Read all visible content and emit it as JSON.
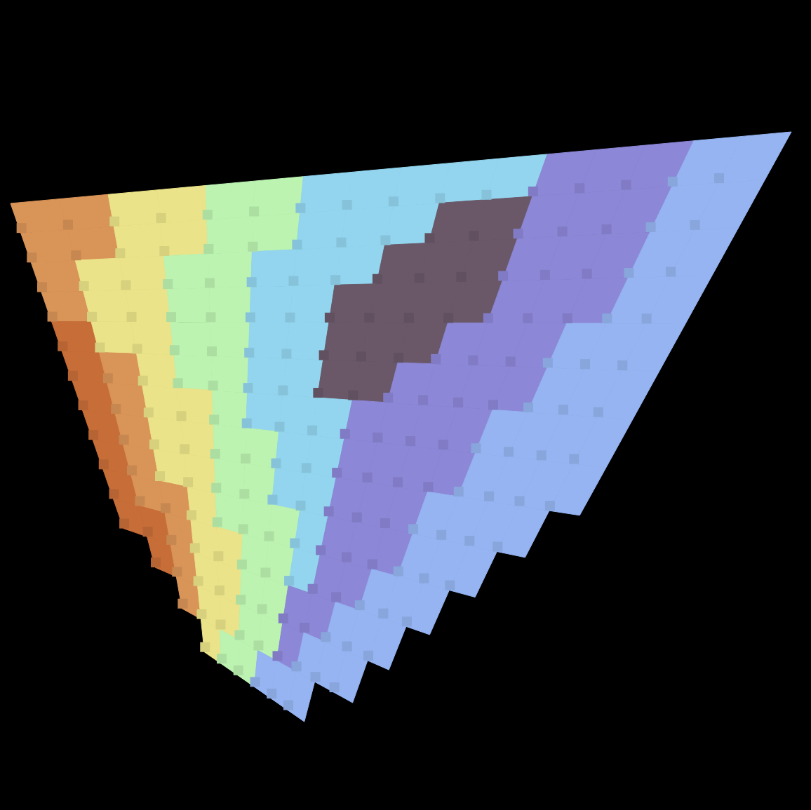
{
  "chart_data": {
    "type": "voxel",
    "tick_labels": false,
    "colors": [
      "#d99458",
      "#ebe389",
      "#bcf3b1",
      "#93d5ee",
      "#6a5868",
      "#8c87d6",
      "#95b4f1",
      "#c76d38"
    ],
    "cells": [
      [
        0,
        0,
        1,
        1,
        2,
        2,
        3,
        3,
        3,
        3,
        3,
        5,
        5,
        5,
        6,
        6
      ],
      [
        0,
        0,
        1,
        1,
        2,
        2,
        3,
        3,
        3,
        4,
        4,
        5,
        5,
        5,
        6,
        6
      ],
      [
        0,
        1,
        1,
        2,
        2,
        3,
        3,
        3,
        4,
        4,
        4,
        5,
        5,
        5,
        6,
        6
      ],
      [
        0,
        1,
        1,
        2,
        2,
        3,
        3,
        4,
        4,
        4,
        4,
        5,
        5,
        5,
        6,
        6
      ],
      [
        7,
        1,
        1,
        2,
        2,
        3,
        3,
        4,
        4,
        4,
        5,
        5,
        5,
        6,
        6,
        6
      ],
      [
        7,
        0,
        1,
        2,
        2,
        3,
        3,
        4,
        4,
        5,
        5,
        5,
        5,
        6,
        6,
        6
      ],
      [
        7,
        0,
        1,
        1,
        2,
        3,
        3,
        3,
        5,
        5,
        5,
        5,
        6,
        6,
        6,
        6
      ],
      [
        7,
        0,
        1,
        1,
        2,
        2,
        3,
        3,
        5,
        5,
        5,
        5,
        6,
        6,
        6,
        6
      ],
      [
        7,
        0,
        1,
        1,
        2,
        2,
        3,
        3,
        5,
        5,
        5,
        6,
        6,
        6,
        6,
        null
      ],
      [
        7,
        0,
        0,
        1,
        2,
        2,
        2,
        3,
        5,
        5,
        5,
        6,
        6,
        6,
        null,
        null
      ],
      [
        7,
        7,
        0,
        1,
        1,
        2,
        2,
        3,
        5,
        5,
        6,
        6,
        6,
        null,
        null,
        null
      ],
      [
        null,
        7,
        0,
        1,
        1,
        2,
        2,
        5,
        5,
        6,
        6,
        6,
        null,
        null,
        null,
        null
      ],
      [
        null,
        null,
        0,
        1,
        1,
        2,
        2,
        5,
        6,
        6,
        6,
        null,
        null,
        null,
        null,
        null
      ],
      [
        null,
        null,
        null,
        1,
        2,
        2,
        6,
        6,
        6,
        null,
        null,
        null,
        null,
        null,
        null,
        null
      ]
    ]
  }
}
